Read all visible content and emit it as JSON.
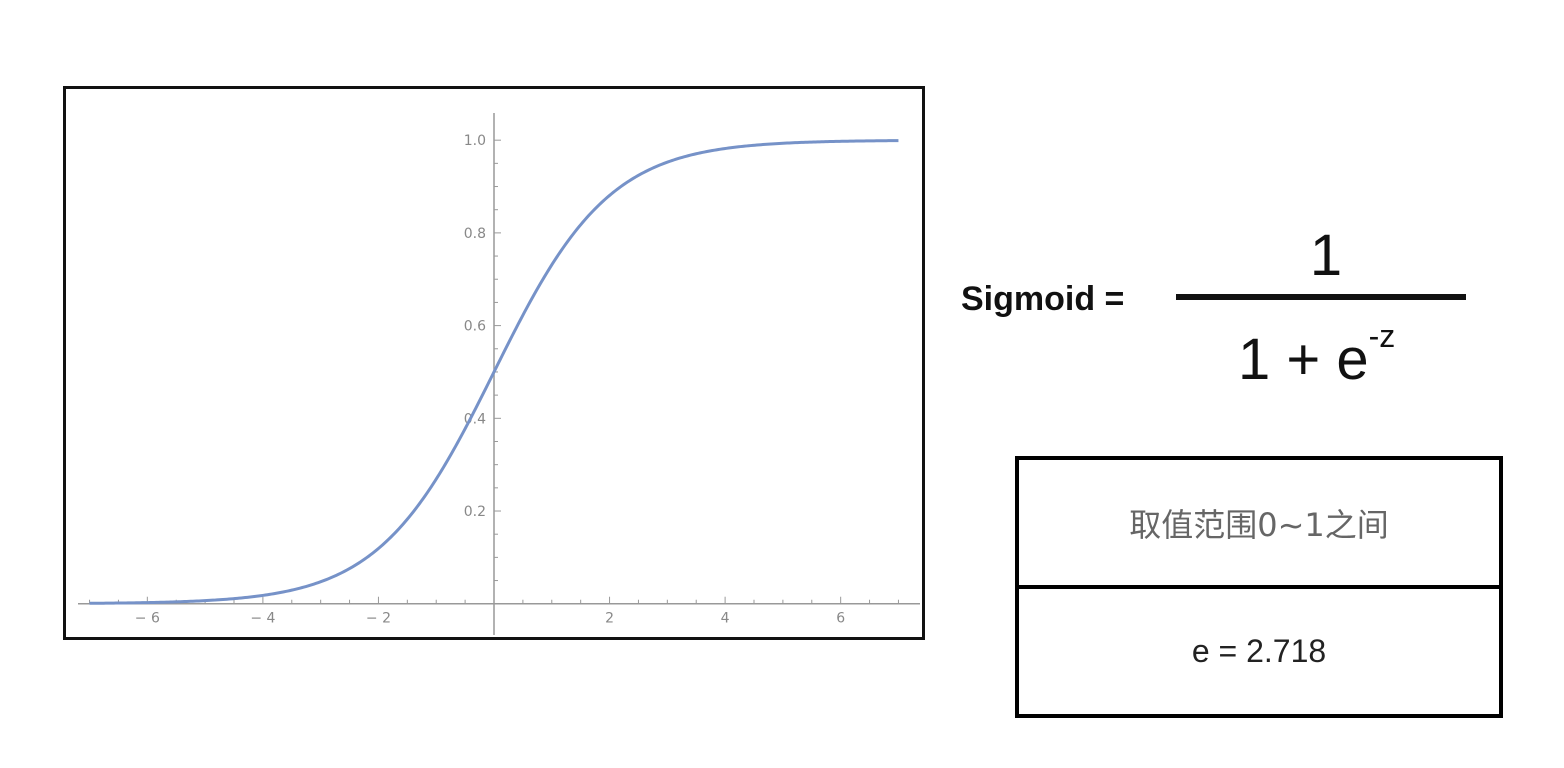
{
  "chart_data": {
    "type": "line",
    "function": "sigmoid",
    "title": "",
    "xlabel": "",
    "ylabel": "",
    "xlim": [
      -7.2,
      7.2
    ],
    "ylim": [
      -0.02,
      1.05
    ],
    "x_ticks": [
      -6,
      -4,
      -2,
      2,
      4,
      6
    ],
    "x_tick_labels": [
      "− 6",
      "− 4",
      "− 2",
      "2",
      "4",
      "6"
    ],
    "y_ticks": [
      0.2,
      0.4,
      0.6,
      0.8,
      1.0
    ],
    "y_tick_labels": [
      "0.2",
      "0.4",
      "0.6",
      "0.8",
      "1.0"
    ],
    "x_range_drawn": [
      -7,
      7
    ],
    "series": [
      {
        "color": "#7692c8",
        "x": [
          -7,
          -6,
          -5,
          -4,
          -3,
          -2,
          -1,
          0,
          1,
          2,
          3,
          4,
          5,
          6,
          7
        ],
        "y": [
          0.0009,
          0.0025,
          0.0067,
          0.018,
          0.047,
          0.119,
          0.269,
          0.5,
          0.731,
          0.881,
          0.953,
          0.982,
          0.9933,
          0.9975,
          0.9991
        ]
      }
    ],
    "grid": false,
    "legend": "none"
  },
  "formula": {
    "label": "Sigmoid =",
    "numerator": "1",
    "denominator_base": "1 + e",
    "denominator_exponent": "-z"
  },
  "info": {
    "range_text": "取值范围0~1之间",
    "e_text": "e = 2.718"
  }
}
